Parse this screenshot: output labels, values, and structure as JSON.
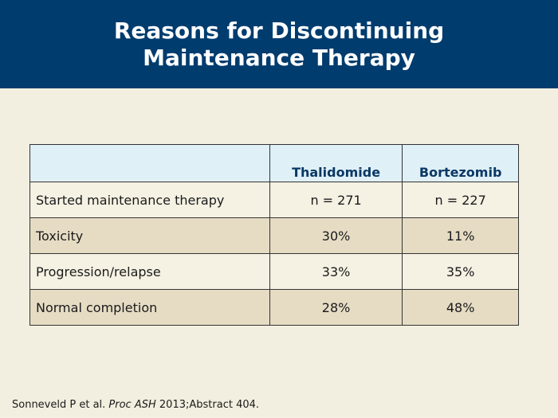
{
  "title": {
    "line1": "Reasons for Discontinuing",
    "line2": "Maintenance Therapy"
  },
  "table": {
    "header": [
      "",
      "Thalidomide",
      "Bortezomib"
    ],
    "rows": [
      [
        "Started maintenance therapy",
        "n = 271",
        "n = 227"
      ],
      [
        "Toxicity",
        "30%",
        "11%"
      ],
      [
        "Progression/relapse",
        "33%",
        "35%"
      ],
      [
        "Normal completion",
        "28%",
        "48%"
      ]
    ]
  },
  "citation": {
    "authors": "Sonneveld P et al.",
    "journal": "Proc ASH",
    "details": "2013;Abstract 404."
  },
  "colors": {
    "title_bar": "#003c6e",
    "background": "#f3efe0",
    "header_row": "#dff0f7",
    "header_text": "#0a3864",
    "alt_row": "#e6dcc4"
  }
}
